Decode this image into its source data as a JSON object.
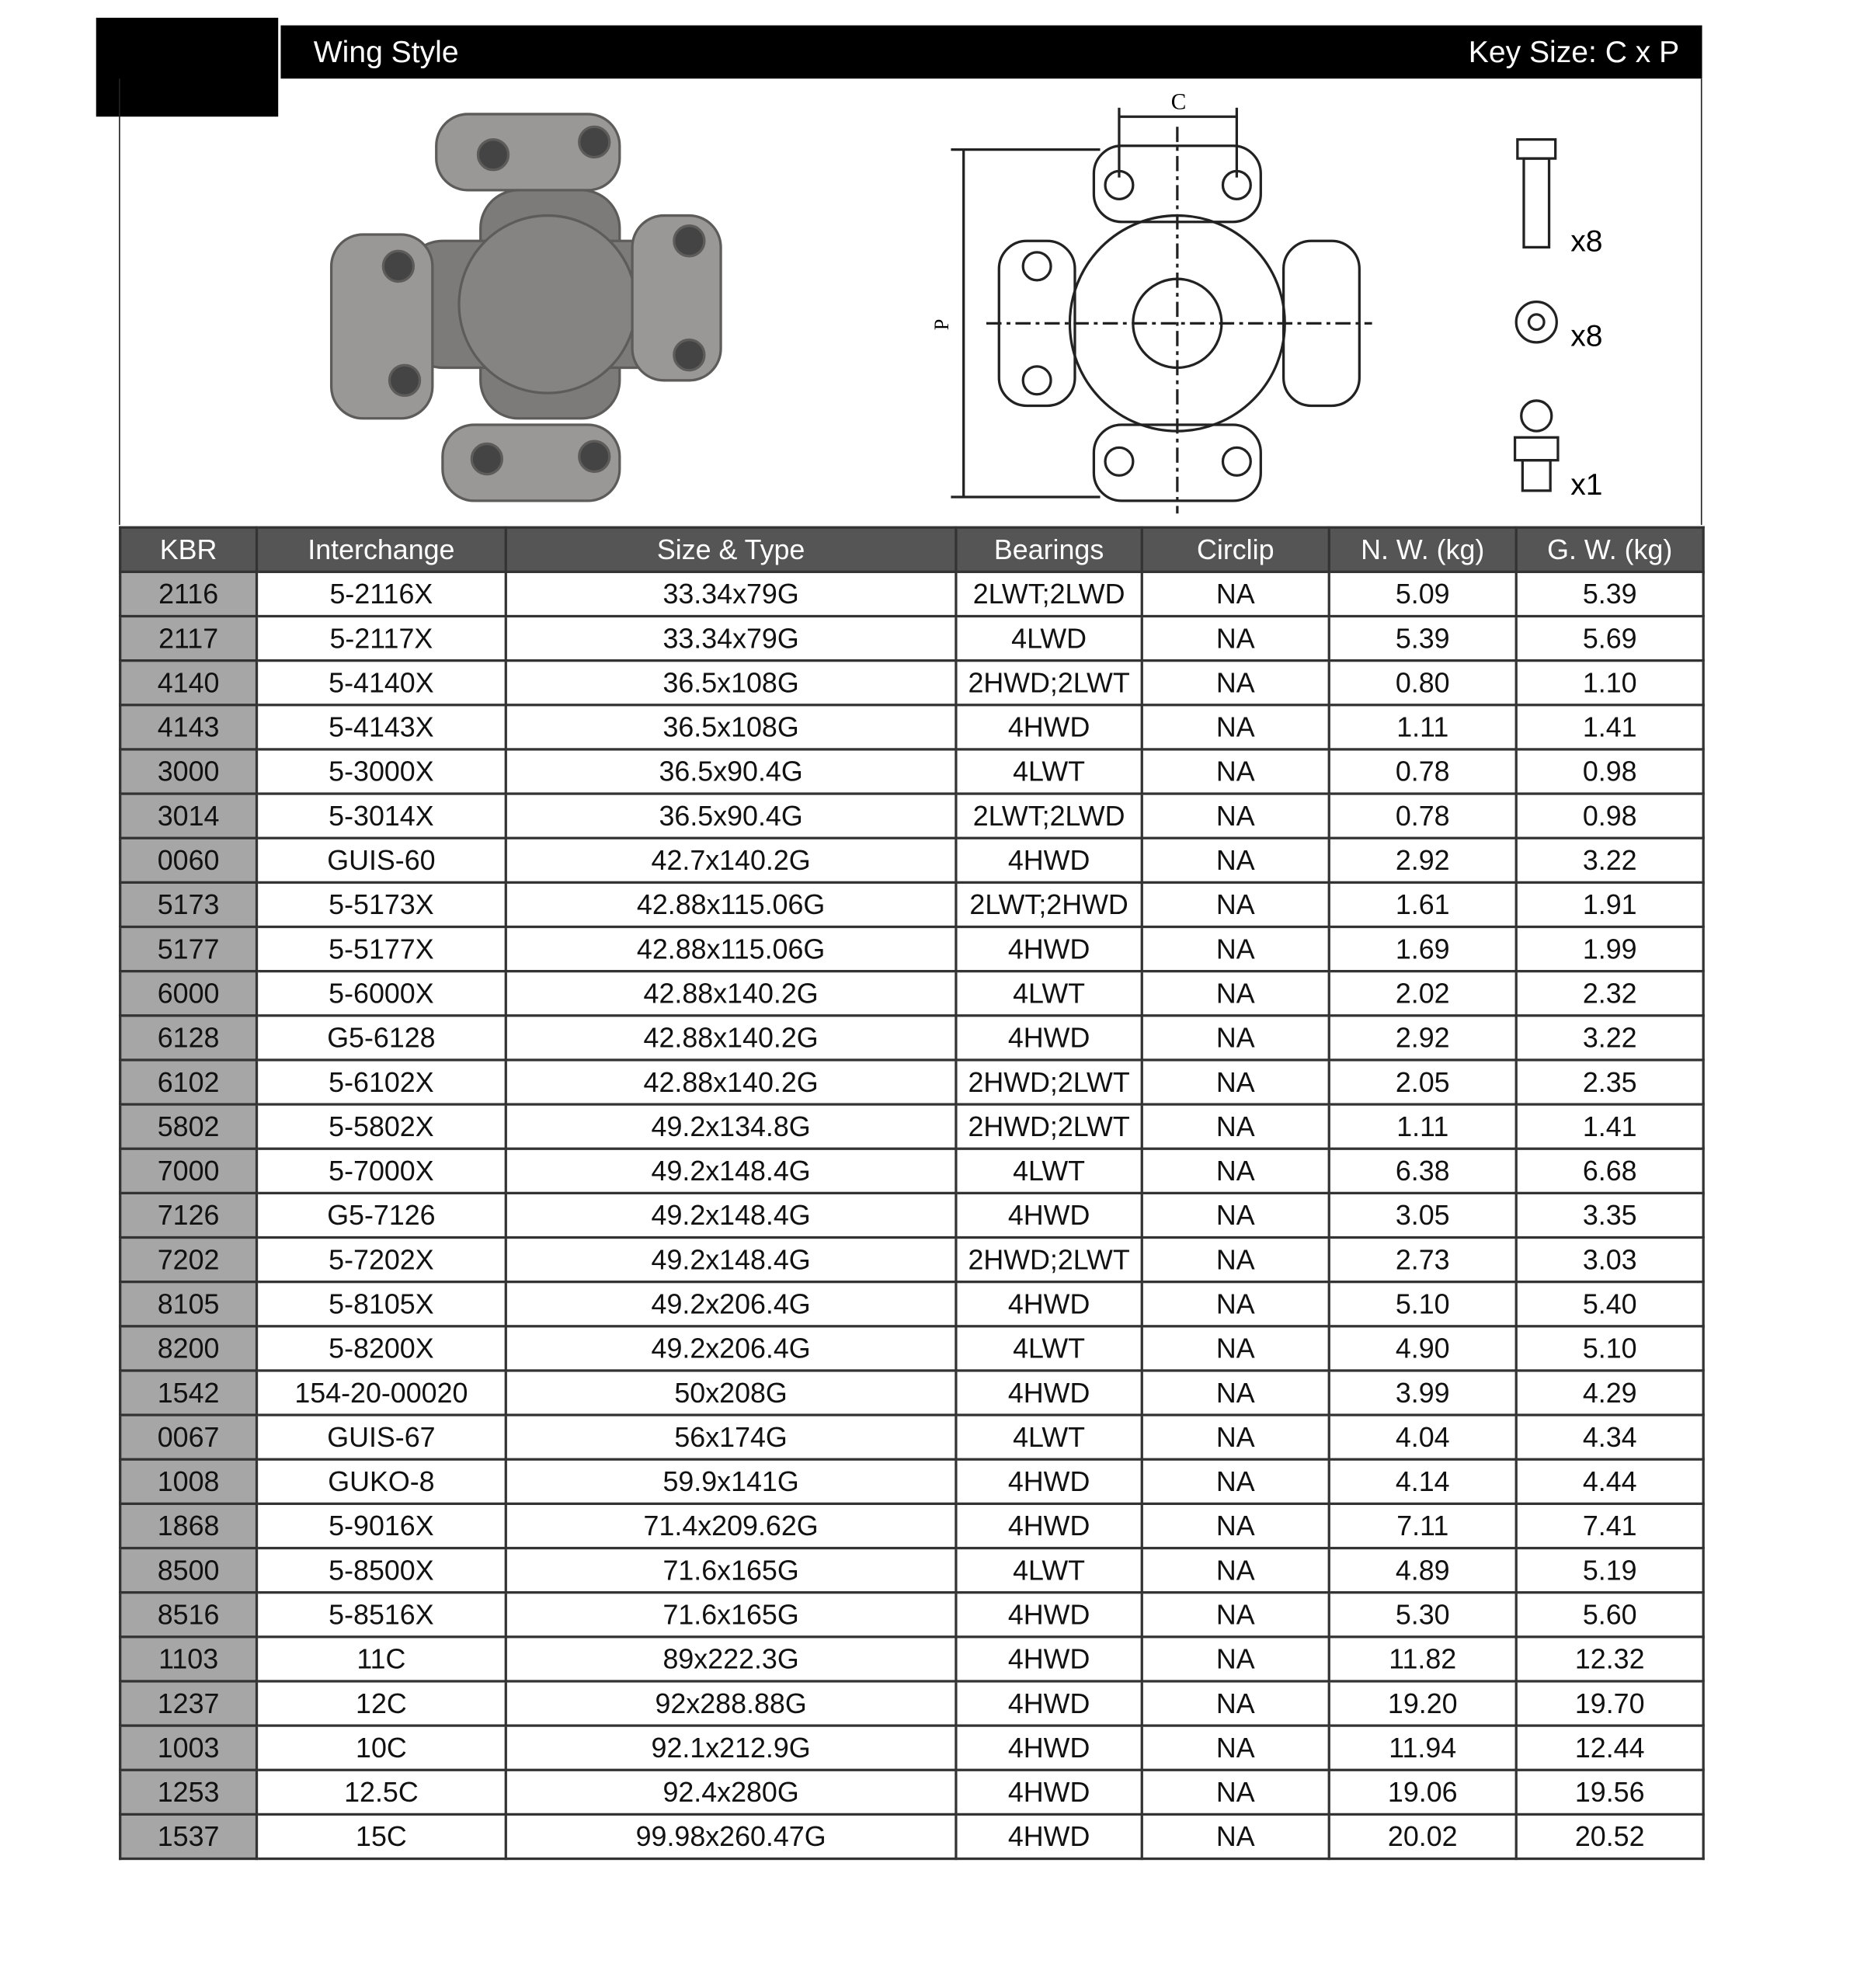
{
  "header": {
    "title": "Wing Style",
    "key_size": "Key Size: C x P"
  },
  "diagram": {
    "dimension_c": "C",
    "dimension_p": "P",
    "bolt_count": "x8",
    "washer_count": "x8",
    "grease_fitting_count": "x1"
  },
  "table": {
    "columns": [
      "KBR",
      "Interchange",
      "Size & Type",
      "Bearings",
      "Circlip",
      "N. W. (kg)",
      "G. W. (kg)"
    ],
    "rows": [
      [
        "2116",
        "5-2116X",
        "33.34x79G",
        "2LWT;2LWD",
        "NA",
        "5.09",
        "5.39"
      ],
      [
        "2117",
        "5-2117X",
        "33.34x79G",
        "4LWD",
        "NA",
        "5.39",
        "5.69"
      ],
      [
        "4140",
        "5-4140X",
        "36.5x108G",
        "2HWD;2LWT",
        "NA",
        "0.80",
        "1.10"
      ],
      [
        "4143",
        "5-4143X",
        "36.5x108G",
        "4HWD",
        "NA",
        "1.11",
        "1.41"
      ],
      [
        "3000",
        "5-3000X",
        "36.5x90.4G",
        "4LWT",
        "NA",
        "0.78",
        "0.98"
      ],
      [
        "3014",
        "5-3014X",
        "36.5x90.4G",
        "2LWT;2LWD",
        "NA",
        "0.78",
        "0.98"
      ],
      [
        "0060",
        "GUIS-60",
        "42.7x140.2G",
        "4HWD",
        "NA",
        "2.92",
        "3.22"
      ],
      [
        "5173",
        "5-5173X",
        "42.88x115.06G",
        "2LWT;2HWD",
        "NA",
        "1.61",
        "1.91"
      ],
      [
        "5177",
        "5-5177X",
        "42.88x115.06G",
        "4HWD",
        "NA",
        "1.69",
        "1.99"
      ],
      [
        "6000",
        "5-6000X",
        "42.88x140.2G",
        "4LWT",
        "NA",
        "2.02",
        "2.32"
      ],
      [
        "6128",
        "G5-6128",
        "42.88x140.2G",
        "4HWD",
        "NA",
        "2.92",
        "3.22"
      ],
      [
        "6102",
        "5-6102X",
        "42.88x140.2G",
        "2HWD;2LWT",
        "NA",
        "2.05",
        "2.35"
      ],
      [
        "5802",
        "5-5802X",
        "49.2x134.8G",
        "2HWD;2LWT",
        "NA",
        "1.11",
        "1.41"
      ],
      [
        "7000",
        "5-7000X",
        "49.2x148.4G",
        "4LWT",
        "NA",
        "6.38",
        "6.68"
      ],
      [
        "7126",
        "G5-7126",
        "49.2x148.4G",
        "4HWD",
        "NA",
        "3.05",
        "3.35"
      ],
      [
        "7202",
        "5-7202X",
        "49.2x148.4G",
        "2HWD;2LWT",
        "NA",
        "2.73",
        "3.03"
      ],
      [
        "8105",
        "5-8105X",
        "49.2x206.4G",
        "4HWD",
        "NA",
        "5.10",
        "5.40"
      ],
      [
        "8200",
        "5-8200X",
        "49.2x206.4G",
        "4LWT",
        "NA",
        "4.90",
        "5.10"
      ],
      [
        "1542",
        "154-20-00020",
        "50x208G",
        "4HWD",
        "NA",
        "3.99",
        "4.29"
      ],
      [
        "0067",
        "GUIS-67",
        "56x174G",
        "4LWT",
        "NA",
        "4.04",
        "4.34"
      ],
      [
        "1008",
        "GUKO-8",
        "59.9x141G",
        "4HWD",
        "NA",
        "4.14",
        "4.44"
      ],
      [
        "1868",
        "5-9016X",
        "71.4x209.62G",
        "4HWD",
        "NA",
        "7.11",
        "7.41"
      ],
      [
        "8500",
        "5-8500X",
        "71.6x165G",
        "4LWT",
        "NA",
        "4.89",
        "5.19"
      ],
      [
        "8516",
        "5-8516X",
        "71.6x165G",
        "4HWD",
        "NA",
        "5.30",
        "5.60"
      ],
      [
        "1103",
        "11C",
        "89x222.3G",
        "4HWD",
        "NA",
        "11.82",
        "12.32"
      ],
      [
        "1237",
        "12C",
        "92x288.88G",
        "4HWD",
        "NA",
        "19.20",
        "19.70"
      ],
      [
        "1003",
        "10C",
        "92.1x212.9G",
        "4HWD",
        "NA",
        "11.94",
        "12.44"
      ],
      [
        "1253",
        "12.5C",
        "92.4x280G",
        "4HWD",
        "NA",
        "19.06",
        "19.56"
      ],
      [
        "1537",
        "15C",
        "99.98x260.47G",
        "4HWD",
        "NA",
        "20.02",
        "20.52"
      ]
    ]
  }
}
